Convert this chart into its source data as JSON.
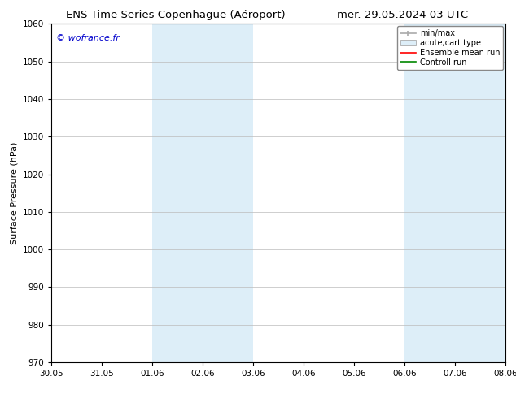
{
  "title_left": "ENS Time Series Copenhague (Aéroport)",
  "title_right": "mer. 29.05.2024 03 UTC",
  "ylabel": "Surface Pressure (hPa)",
  "ylim": [
    970,
    1060
  ],
  "yticks": [
    970,
    980,
    990,
    1000,
    1010,
    1020,
    1030,
    1040,
    1050,
    1060
  ],
  "x_tick_labels": [
    "30.05",
    "31.05",
    "01.06",
    "02.06",
    "03.06",
    "04.06",
    "05.06",
    "06.06",
    "07.06",
    "08.06"
  ],
  "x_tick_positions": [
    0,
    1,
    2,
    3,
    4,
    5,
    6,
    7,
    8,
    9
  ],
  "shade_regions": [
    {
      "xmin": 2,
      "xmax": 4,
      "color": "#ddeef8"
    },
    {
      "xmin": 7,
      "xmax": 9,
      "color": "#ddeef8"
    }
  ],
  "watermark": "© wofrance.fr",
  "watermark_color": "#0000cc",
  "background_color": "#ffffff",
  "plot_bg_color": "#ffffff",
  "grid_color": "#bbbbbb",
  "legend_items": [
    {
      "label": "min/max",
      "color": "#aaaaaa",
      "style": "line_with_caps"
    },
    {
      "label": "acute;cart type",
      "color": "#ccddee",
      "style": "filled_box"
    },
    {
      "label": "Ensemble mean run",
      "color": "#ff0000",
      "style": "line"
    },
    {
      "label": "Controll run",
      "color": "#008800",
      "style": "line"
    }
  ],
  "title_fontsize": 9.5,
  "axis_fontsize": 8,
  "tick_fontsize": 7.5,
  "legend_fontsize": 7,
  "watermark_fontsize": 8
}
